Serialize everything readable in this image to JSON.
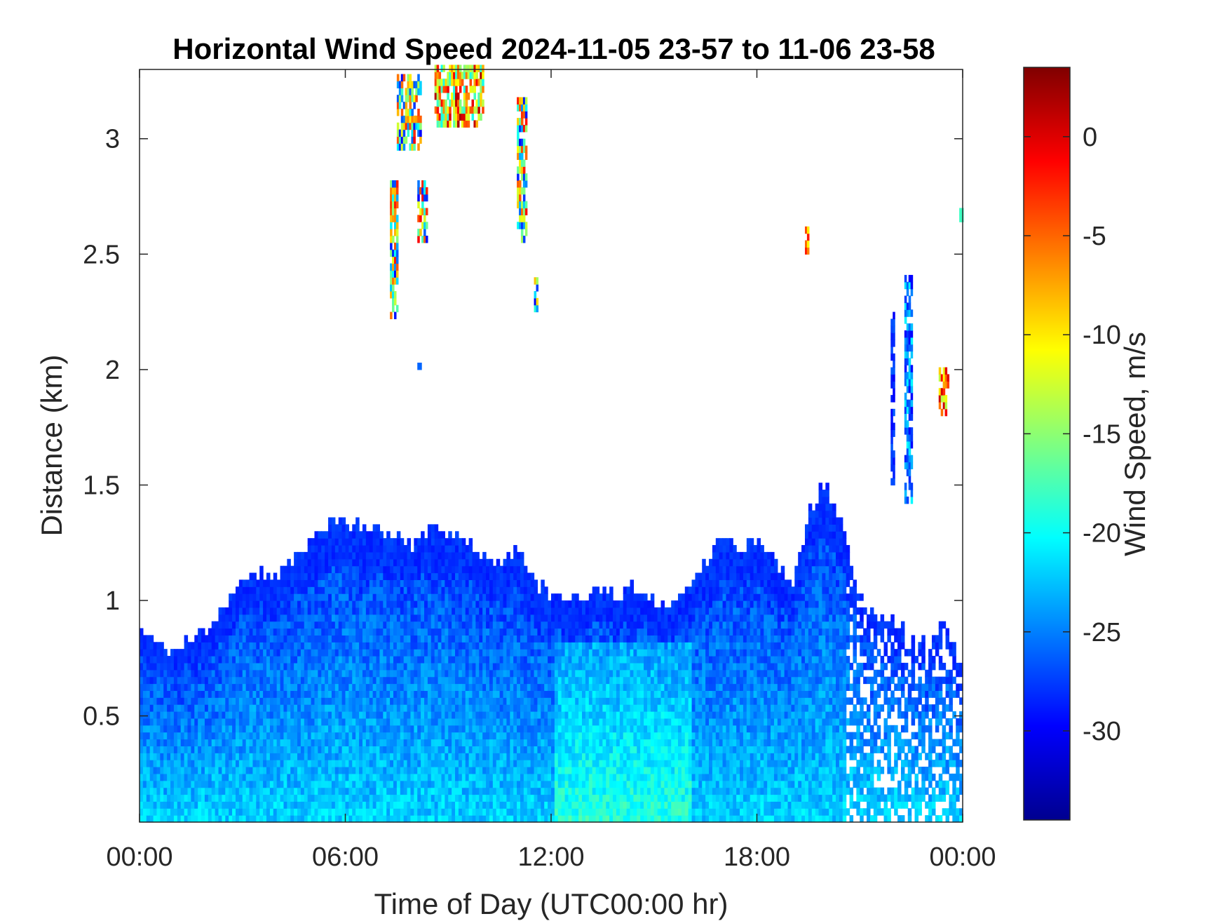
{
  "chart_data": {
    "type": "heatmap",
    "title": "Horizontal Wind Speed 2024-11-05 23-57 to 11-06 23-58",
    "xlabel": "Time of Day (UTC00:00 hr)",
    "ylabel": "Distance (km)",
    "colorbar_label": "Wind Speed, m/s",
    "colormap": "jet",
    "x_ticks": [
      {
        "value": 0,
        "label": "00:00"
      },
      {
        "value": 6,
        "label": "06:00"
      },
      {
        "value": 12,
        "label": "12:00"
      },
      {
        "value": 18,
        "label": "18:00"
      },
      {
        "value": 24,
        "label": "00:00"
      }
    ],
    "y_ticks": [
      {
        "value": 0.5,
        "label": "0.5"
      },
      {
        "value": 1,
        "label": "1"
      },
      {
        "value": 1.5,
        "label": "1.5"
      },
      {
        "value": 2,
        "label": "2"
      },
      {
        "value": 2.5,
        "label": "2.5"
      },
      {
        "value": 3,
        "label": "3"
      }
    ],
    "colorbar_ticks": [
      {
        "value": 0,
        "label": "0"
      },
      {
        "value": -5,
        "label": "-5"
      },
      {
        "value": -10,
        "label": "-10"
      },
      {
        "value": -15,
        "label": "-15"
      },
      {
        "value": -20,
        "label": "-20"
      },
      {
        "value": -25,
        "label": "-25"
      },
      {
        "value": -30,
        "label": "-30"
      }
    ],
    "xlim": [
      0,
      24
    ],
    "ylim": [
      0.04,
      3.3
    ],
    "clim": [
      -34.5,
      3.5
    ],
    "grid": false,
    "boundary_layer_top_km": [
      [
        0.0,
        0.86
      ],
      [
        0.5,
        0.82
      ],
      [
        1.0,
        0.76
      ],
      [
        1.5,
        0.82
      ],
      [
        2.0,
        0.86
      ],
      [
        2.5,
        0.95
      ],
      [
        3.0,
        1.09
      ],
      [
        3.5,
        1.12
      ],
      [
        4.0,
        1.1
      ],
      [
        4.5,
        1.15
      ],
      [
        5.0,
        1.25
      ],
      [
        5.5,
        1.3
      ],
      [
        6.0,
        1.34
      ],
      [
        6.5,
        1.3
      ],
      [
        7.0,
        1.28
      ],
      [
        7.5,
        1.25
      ],
      [
        8.0,
        1.22
      ],
      [
        8.5,
        1.3
      ],
      [
        9.0,
        1.28
      ],
      [
        9.5,
        1.25
      ],
      [
        10.0,
        1.18
      ],
      [
        10.5,
        1.15
      ],
      [
        11.0,
        1.2
      ],
      [
        11.5,
        1.08
      ],
      [
        12.0,
        1.0
      ],
      [
        12.5,
        1.0
      ],
      [
        13.0,
        1.02
      ],
      [
        13.5,
        1.04
      ],
      [
        14.0,
        1.0
      ],
      [
        14.5,
        1.06
      ],
      [
        15.0,
        0.98
      ],
      [
        15.5,
        0.95
      ],
      [
        16.0,
        1.05
      ],
      [
        16.5,
        1.15
      ],
      [
        17.0,
        1.28
      ],
      [
        17.5,
        1.2
      ],
      [
        18.0,
        1.25
      ],
      [
        18.5,
        1.15
      ],
      [
        19.0,
        1.05
      ],
      [
        19.5,
        1.35
      ],
      [
        20.0,
        1.5
      ],
      [
        20.5,
        1.3
      ],
      [
        21.0,
        1.0
      ],
      [
        21.5,
        0.95
      ],
      [
        22.0,
        0.9
      ],
      [
        22.5,
        0.82
      ],
      [
        23.0,
        0.78
      ],
      [
        23.5,
        0.9
      ],
      [
        24.0,
        0.7
      ]
    ],
    "boundary_layer_speed_range_ms": [
      -28,
      -17
    ],
    "elevated_features": [
      {
        "t_start": 7.3,
        "t_end": 7.5,
        "h_min": 2.22,
        "h_max": 2.8,
        "speed_range": [
          -30,
          -2
        ]
      },
      {
        "t_start": 7.5,
        "t_end": 8.2,
        "h_min": 2.95,
        "h_max": 3.27,
        "speed_range": [
          -30,
          -1
        ]
      },
      {
        "t_start": 8.1,
        "t_end": 8.4,
        "h_min": 2.55,
        "h_max": 2.8,
        "speed_range": [
          -30,
          -1
        ]
      },
      {
        "t_start": 8.1,
        "t_end": 8.2,
        "h_min": 2.0,
        "h_max": 2.03,
        "speed_range": [
          -26,
          -26
        ]
      },
      {
        "t_start": 8.6,
        "t_end": 10.0,
        "h_min": 3.05,
        "h_max": 3.3,
        "speed_range": [
          -20,
          2
        ]
      },
      {
        "t_start": 11.0,
        "t_end": 11.3,
        "h_min": 2.55,
        "h_max": 3.15,
        "speed_range": [
          -30,
          -1
        ]
      },
      {
        "t_start": 11.5,
        "t_end": 11.6,
        "h_min": 2.25,
        "h_max": 2.38,
        "speed_range": [
          -30,
          -8
        ]
      },
      {
        "t_start": 19.4,
        "t_end": 19.5,
        "h_min": 2.5,
        "h_max": 2.6,
        "speed_range": [
          -12,
          -1
        ]
      },
      {
        "t_start": 21.9,
        "t_end": 22.0,
        "h_min": 1.5,
        "h_max": 2.22,
        "speed_range": [
          -30,
          -26
        ]
      },
      {
        "t_start": 22.3,
        "t_end": 22.5,
        "h_min": 1.42,
        "h_max": 2.38,
        "speed_range": [
          -30,
          -20
        ]
      },
      {
        "t_start": 23.3,
        "t_end": 23.6,
        "h_min": 1.8,
        "h_max": 2.0,
        "speed_range": [
          -14,
          1
        ]
      },
      {
        "t_start": 23.9,
        "t_end": 24.0,
        "h_min": 2.64,
        "h_max": 2.68,
        "speed_range": [
          -18,
          -18
        ]
      }
    ]
  }
}
